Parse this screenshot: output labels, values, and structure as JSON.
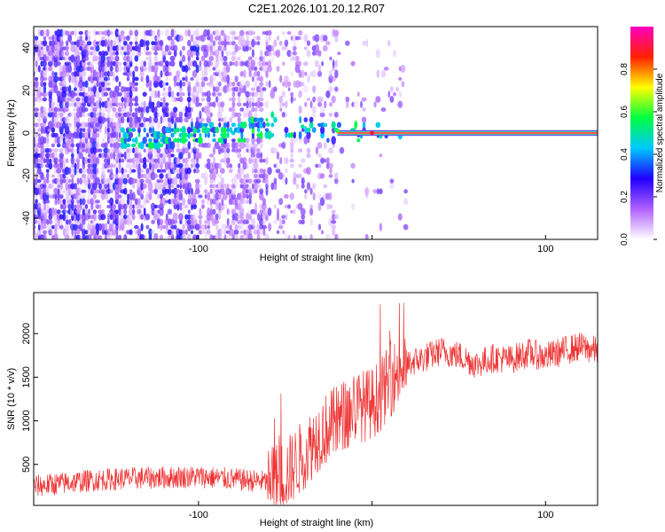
{
  "title": "C2E1.2026.101.20.12.R07",
  "chart_data": [
    {
      "type": "heatmap",
      "xlabel": "Height of straight line (km)",
      "ylabel": "Frequency (Hz)",
      "xlim": [
        -195,
        130
      ],
      "ylim": [
        -50,
        50
      ],
      "xticks": [
        -100,
        0,
        100
      ],
      "xtick_labels": [
        "-100",
        "",
        "100"
      ],
      "yticks": [
        -40,
        -20,
        0,
        20,
        40
      ],
      "colorbar": {
        "label": "Normalized spectral amplitude",
        "range": [
          0.0,
          1.0
        ],
        "ticks": [
          0.0,
          0.2,
          0.4,
          0.6,
          0.8
        ],
        "tick_labels": [
          "0.0",
          "0.2",
          "0.4",
          "0.6",
          "0.8"
        ],
        "colors": [
          "#ffffff",
          "#b060ff",
          "#2000ff",
          "#00c8ff",
          "#00ff40",
          "#ffff00",
          "#ff2000",
          "#ff00c0"
        ]
      },
      "ridge": {
        "description_points_x": [
          -140,
          -120,
          -100,
          -80,
          -60,
          -40,
          -20,
          0,
          20,
          60,
          100,
          130
        ],
        "frequency_hz": [
          -3,
          -2,
          1,
          0,
          4,
          3,
          1,
          0,
          0,
          0,
          0,
          0
        ],
        "amplitude": [
          0.35,
          0.4,
          0.4,
          0.45,
          0.5,
          0.5,
          0.6,
          0.9,
          0.95,
          0.95,
          0.95,
          0.95
        ]
      }
    },
    {
      "type": "line",
      "xlabel": "Height of straight line (km)",
      "ylabel": "SNR (10 * v/v)",
      "xlim": [
        -195,
        130
      ],
      "ylim": [
        30,
        2470
      ],
      "xticks": [
        -100,
        0,
        100
      ],
      "xtick_labels": [
        "-100",
        "",
        "100"
      ],
      "yticks": [
        500,
        1000,
        1500,
        2000
      ],
      "color": "#ee3333",
      "series": [
        {
          "x": [
            -195,
            -180,
            -160,
            -140,
            -120,
            -100,
            -80,
            -60,
            -50,
            -40,
            -30,
            -20,
            -10,
            0,
            5,
            10,
            15,
            20,
            30,
            40,
            50,
            60,
            70,
            80,
            90,
            100,
            110,
            120,
            130
          ],
          "y": [
            250,
            280,
            320,
            340,
            350,
            360,
            330,
            300,
            380,
            600,
            850,
            1000,
            1150,
            1200,
            1300,
            1450,
            1550,
            1650,
            1720,
            1800,
            1750,
            1650,
            1720,
            1700,
            1780,
            1730,
            1800,
            1850,
            1800
          ]
        }
      ]
    }
  ]
}
